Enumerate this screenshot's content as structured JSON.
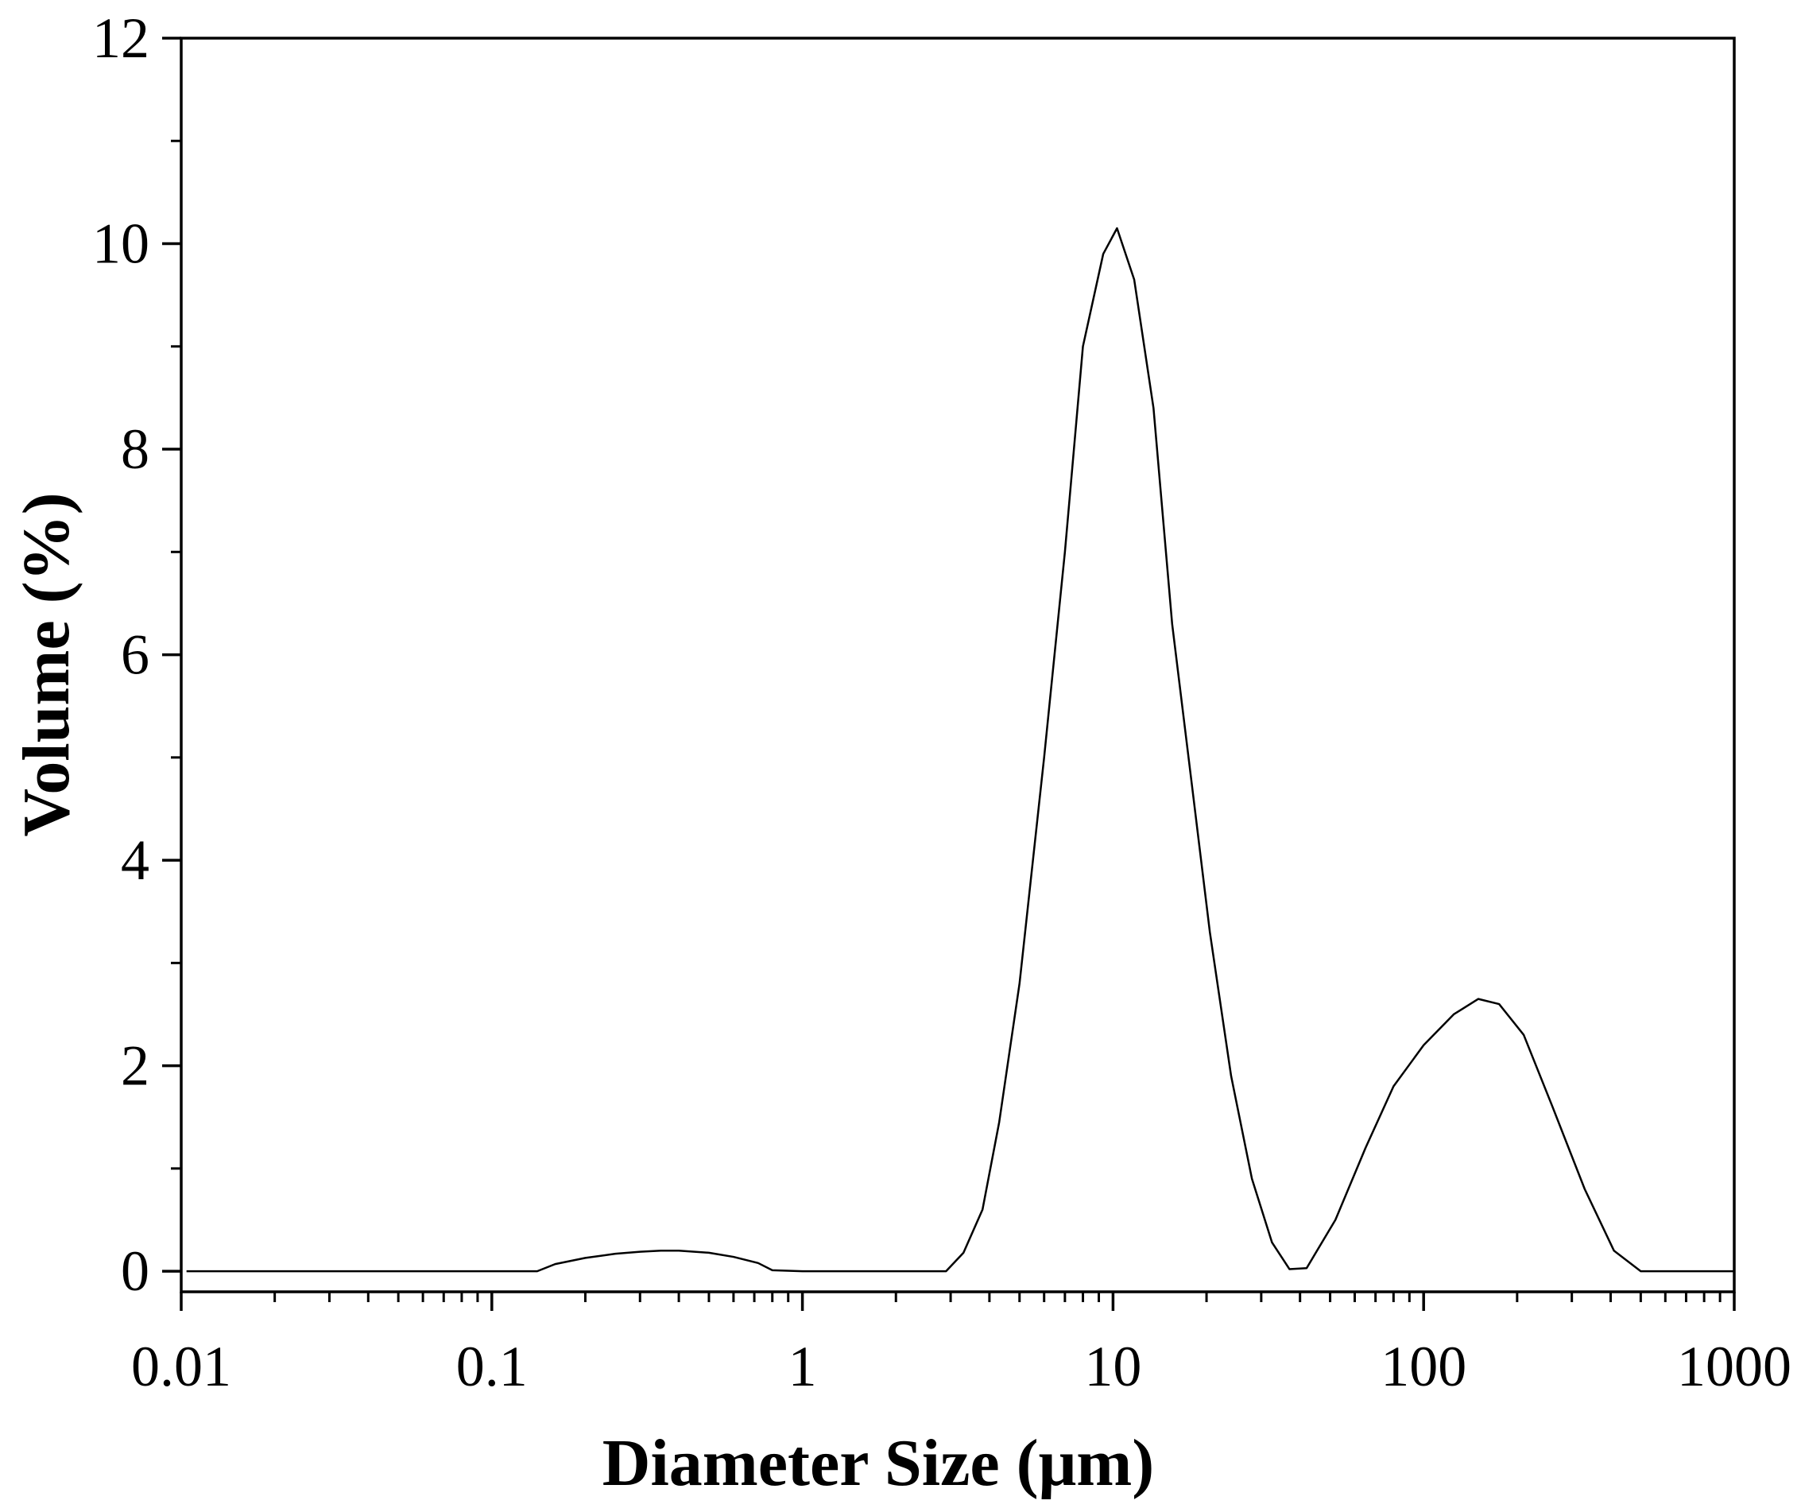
{
  "chart_data": {
    "type": "line",
    "xlabel": "Diameter Size (μm)",
    "ylabel": "Volume (%)",
    "xscale": "log",
    "xlim": [
      0.01,
      1000
    ],
    "ylim": [
      -0.2,
      12
    ],
    "xticks": [
      {
        "value": 0.01,
        "label": "0.01"
      },
      {
        "value": 0.1,
        "label": "0.1"
      },
      {
        "value": 1,
        "label": "1"
      },
      {
        "value": 10,
        "label": "10"
      },
      {
        "value": 100,
        "label": "100"
      },
      {
        "value": 1000,
        "label": "1000"
      }
    ],
    "yticks": [
      {
        "value": 0,
        "label": "0"
      },
      {
        "value": 2,
        "label": "2"
      },
      {
        "value": 4,
        "label": "4"
      },
      {
        "value": 6,
        "label": "6"
      },
      {
        "value": 8,
        "label": "8"
      },
      {
        "value": 10,
        "label": "10"
      },
      {
        "value": 12,
        "label": "12"
      }
    ],
    "grid": false,
    "legend": "none",
    "line_color": "#000000",
    "series": [
      {
        "x": [
          0.0104,
          0.14,
          0.16,
          0.2,
          0.25,
          0.3,
          0.35,
          0.4,
          0.5,
          0.6,
          0.72,
          0.8,
          1.0,
          2.0,
          2.9,
          3.3,
          3.8,
          4.3,
          5.0,
          6.0,
          7.0,
          8.0,
          9.3,
          10.3,
          11.7,
          13.5,
          15.5,
          18.0,
          20.5,
          24.0,
          28.0,
          32.5,
          37.0,
          42.0,
          52.0,
          65.0,
          80.0,
          100.0,
          125.0,
          150.0,
          175.0,
          210.0,
          260.0,
          330.0,
          410.0,
          500.0,
          700.0,
          1000.0
        ],
        "y": [
          0.0,
          0.0,
          0.07,
          0.13,
          0.17,
          0.19,
          0.2,
          0.2,
          0.18,
          0.14,
          0.08,
          0.01,
          0.0,
          0.0,
          0.0,
          0.18,
          0.6,
          1.45,
          2.8,
          5.0,
          7.0,
          9.0,
          9.9,
          10.15,
          9.65,
          8.4,
          6.3,
          4.7,
          3.3,
          1.9,
          0.9,
          0.28,
          0.02,
          0.03,
          0.5,
          1.2,
          1.8,
          2.2,
          2.5,
          2.65,
          2.6,
          2.3,
          1.6,
          0.8,
          0.2,
          0.0,
          0.0,
          0.0
        ]
      }
    ]
  }
}
